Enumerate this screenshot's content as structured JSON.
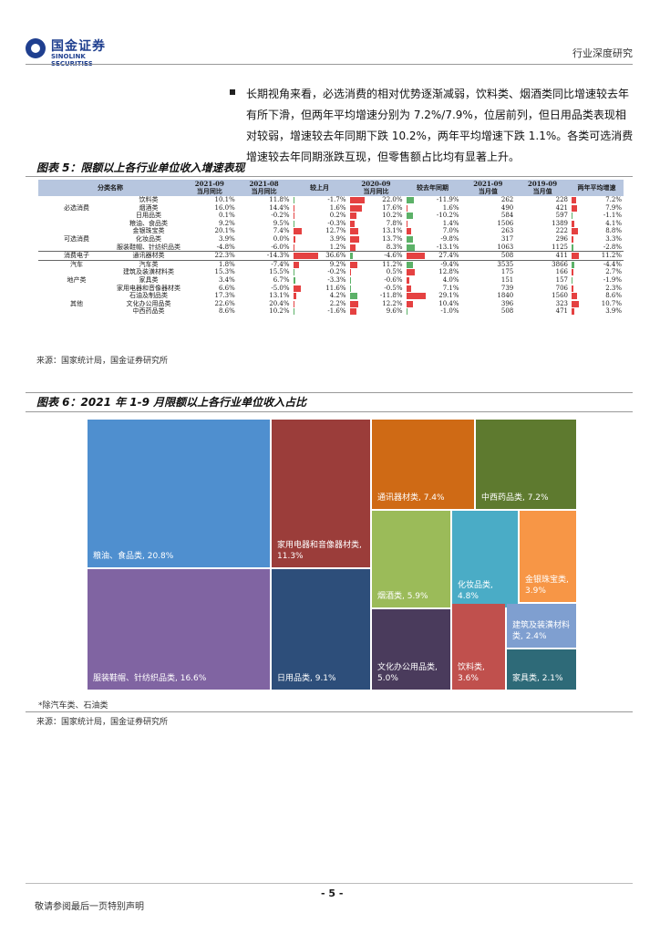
{
  "header": {
    "logo_cn": "国金证券",
    "logo_en": "SINOLINK SECURITIES",
    "right_label": "行业深度研究"
  },
  "paragraph": "长期视角来看，必选消费的相对优势逐渐减弱，饮料类、烟酒类同比增速较去年有所下滑，但两年平均增速分别为 7.2%/7.9%，位居前列，但日用品类表现相对较弱，增速较去年同期下跌 10.2%，两年平均增速下跌 1.1%。各类可选消费增速较去年同期涨跌互现，但零售额占比均有显著上升。",
  "fig5": {
    "title": "图表 5：限额以上各行业单位收入增速表现",
    "headers": [
      "分类名称",
      "",
      "2021-09\n当月同比",
      "2021-08\n当月同比",
      "较上月",
      "2020-09\n当月同比",
      "较去年同期",
      "2021-09\n当月值",
      "2019-09\n当月值",
      "两年平均增速"
    ],
    "rows": [
      {
        "group": "",
        "item": "饮料类",
        "a": "10.1%",
        "b": "11.8%",
        "c": "-1.7%",
        "d": "22.0%",
        "e": "-11.9%",
        "f": "262",
        "g": "228",
        "h": "7.2%"
      },
      {
        "group": "必选消费",
        "item": "烟酒类",
        "a": "16.0%",
        "b": "14.4%",
        "c": "1.6%",
        "d": "17.6%",
        "e": "1.6%",
        "f": "490",
        "g": "421",
        "h": "7.9%"
      },
      {
        "group": "",
        "item": "日用品类",
        "a": "0.1%",
        "b": "-0.2%",
        "c": "0.2%",
        "d": "10.2%",
        "e": "-10.2%",
        "f": "584",
        "g": "597",
        "h": "-1.1%"
      },
      {
        "group": "",
        "item": "粮油、食品类",
        "a": "9.2%",
        "b": "9.5%",
        "c": "-0.3%",
        "d": "7.8%",
        "e": "1.4%",
        "f": "1506",
        "g": "1389",
        "h": "4.1%"
      },
      {
        "group": "",
        "item": "金银珠宝类",
        "a": "20.1%",
        "b": "7.4%",
        "c": "12.7%",
        "d": "13.1%",
        "e": "7.0%",
        "f": "263",
        "g": "222",
        "h": "8.8%"
      },
      {
        "group": "可选消费",
        "item": "化妆品类",
        "a": "3.9%",
        "b": "0.0%",
        "c": "3.9%",
        "d": "13.7%",
        "e": "-9.8%",
        "f": "317",
        "g": "296",
        "h": "3.3%"
      },
      {
        "group": "",
        "item": "服装鞋帽、针纺织品类",
        "a": "-4.8%",
        "b": "-6.0%",
        "c": "1.2%",
        "d": "8.3%",
        "e": "-13.1%",
        "f": "1063",
        "g": "1125",
        "h": "-2.8%"
      },
      {
        "group": "消费电子",
        "item": "通讯器材类",
        "a": "22.3%",
        "b": "-14.3%",
        "c": "36.6%",
        "d": "-4.6%",
        "e": "27.4%",
        "f": "508",
        "g": "411",
        "h": "11.2%"
      },
      {
        "group": "汽车",
        "item": "汽车类",
        "a": "1.8%",
        "b": "-7.4%",
        "c": "9.2%",
        "d": "11.2%",
        "e": "-9.4%",
        "f": "3535",
        "g": "3866",
        "h": "-4.4%"
      },
      {
        "group": "",
        "item": "建筑及装潢材料类",
        "a": "15.3%",
        "b": "15.5%",
        "c": "-0.2%",
        "d": "0.5%",
        "e": "12.8%",
        "f": "175",
        "g": "166",
        "h": "2.7%"
      },
      {
        "group": "地产类",
        "item": "家具类",
        "a": "3.4%",
        "b": "6.7%",
        "c": "-3.3%",
        "d": "-0.6%",
        "e": "4.0%",
        "f": "151",
        "g": "157",
        "h": "-1.9%"
      },
      {
        "group": "",
        "item": "家用电器和音像器材类",
        "a": "6.6%",
        "b": "-5.0%",
        "c": "11.6%",
        "d": "-0.5%",
        "e": "7.1%",
        "f": "739",
        "g": "706",
        "h": "2.3%"
      },
      {
        "group": "",
        "item": "石油及制品类",
        "a": "17.3%",
        "b": "13.1%",
        "c": "4.2%",
        "d": "-11.8%",
        "e": "29.1%",
        "f": "1840",
        "g": "1560",
        "h": "8.6%"
      },
      {
        "group": "其他",
        "item": "文化办公用品类",
        "a": "22.6%",
        "b": "20.4%",
        "c": "2.2%",
        "d": "12.2%",
        "e": "10.4%",
        "f": "396",
        "g": "323",
        "h": "10.7%"
      },
      {
        "group": "",
        "item": "中西药品类",
        "a": "8.6%",
        "b": "10.2%",
        "c": "-1.6%",
        "d": "9.6%",
        "e": "-1.0%",
        "f": "508",
        "g": "471",
        "h": "3.9%"
      }
    ],
    "source": "来源：国家统计局，国金证券研究所"
  },
  "fig6": {
    "title": "图表 6：2021 年 1-9 月限额以上各行业单位收入占比",
    "footnote": "*除汽车类、石油类",
    "source": "来源：国家统计局，国金证券研究所"
  },
  "chart_data": {
    "type": "treemap",
    "title": "图表 6：2021 年 1-9 月限额以上各行业单位收入占比",
    "items": [
      {
        "label": "粮油、食品类, 20.8%",
        "value": 20.8,
        "color": "#4f8fcf"
      },
      {
        "label": "服装鞋帽、针纺织品类, 16.6%",
        "value": 16.6,
        "color": "#8064a2"
      },
      {
        "label": "家用电器和音像器材类, 11.3%",
        "value": 11.3,
        "color": "#9b3d3a"
      },
      {
        "label": "日用品类, 9.1%",
        "value": 9.1,
        "color": "#2d4e7a"
      },
      {
        "label": "通讯器材类, 7.4%",
        "value": 7.4,
        "color": "#cf6a15"
      },
      {
        "label": "中西药品类, 7.2%",
        "value": 7.2,
        "color": "#5e7a2f"
      },
      {
        "label": "烟酒类, 5.9%",
        "value": 5.9,
        "color": "#9bbb59"
      },
      {
        "label": "化妆品类, 4.8%",
        "value": 4.8,
        "color": "#4aacc6"
      },
      {
        "label": "金银珠宝类, 3.9%",
        "value": 3.9,
        "color": "#f79646"
      },
      {
        "label": "文化办公用品类, 5.0%",
        "value": 5.0,
        "color": "#4a3b5c"
      },
      {
        "label": "饮料类, 3.6%",
        "value": 3.6,
        "color": "#c0504d"
      },
      {
        "label": "建筑及装潢材料类, 2.4%",
        "value": 2.4,
        "color": "#7f9fd0"
      },
      {
        "label": "家具类, 2.1%",
        "value": 2.1,
        "color": "#2e6a78"
      }
    ]
  },
  "page": {
    "number": "- 5 -",
    "disclaimer": "敬请参阅最后一页特别声明"
  },
  "colors": {
    "accent_blue": "#1f3f8f",
    "header_fill": "#b7c6df",
    "bar_red": "#e02020",
    "bar_green": "#3fa34d"
  }
}
